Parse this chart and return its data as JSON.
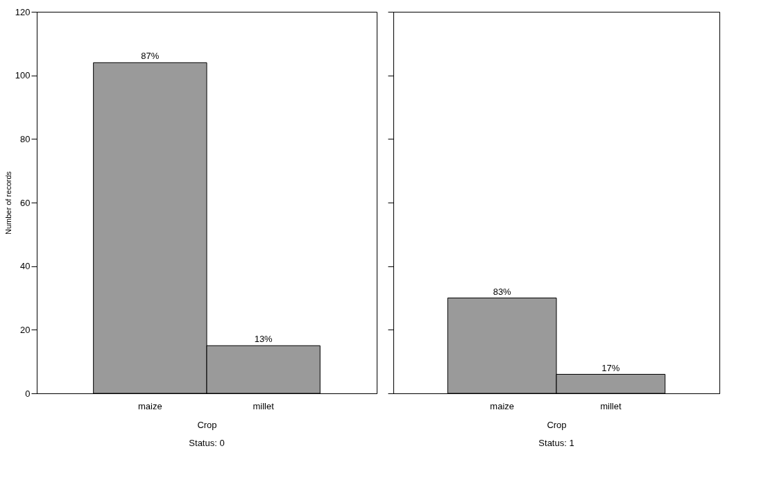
{
  "chart_data": [
    {
      "type": "bar",
      "title": "Status: 0",
      "xlabel": "Crop",
      "ylabel": "Number of records",
      "categories": [
        "maize",
        "millet"
      ],
      "values": [
        104,
        15
      ],
      "annotations": [
        {
          "text": "87%",
          "x": "maize",
          "y": 104
        },
        {
          "text": "13%",
          "x": "millet",
          "y": 15
        }
      ],
      "color": "#9a9a9a",
      "ylim": [
        0,
        120
      ],
      "yticks": [
        0,
        20,
        40,
        60,
        80,
        100,
        120
      ],
      "grid": false
    },
    {
      "type": "bar",
      "title": "Status: 1",
      "xlabel": "Crop",
      "categories": [
        "maize",
        "millet"
      ],
      "values": [
        30,
        6
      ],
      "annotations": [
        {
          "text": "83%",
          "x": "maize",
          "y": 30
        },
        {
          "text": "17%",
          "x": "millet",
          "y": 6
        }
      ],
      "color": "#9a9a9a",
      "ylim": [
        0,
        120
      ],
      "yticks": [
        0,
        20,
        40,
        60,
        80,
        100,
        120
      ],
      "grid": false,
      "tick_labels": "x"
    }
  ]
}
